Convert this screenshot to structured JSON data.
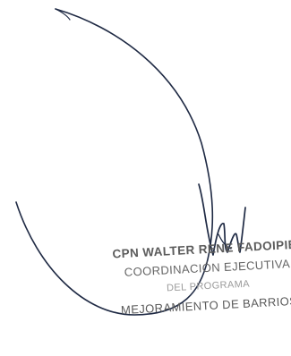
{
  "signature_image": "handwritten-signature",
  "stamp": {
    "line1": "CPN WALTER RENE FADOIPIEZ",
    "line2": "COORDINACIÓN EJECUTIVA",
    "line3": "DEL PROGRAMA",
    "line4": "MEJORAMIENTO DE BARRIOS"
  },
  "colors": {
    "ink": "#1f2a44",
    "stamp_text": "#5c5c5c"
  }
}
